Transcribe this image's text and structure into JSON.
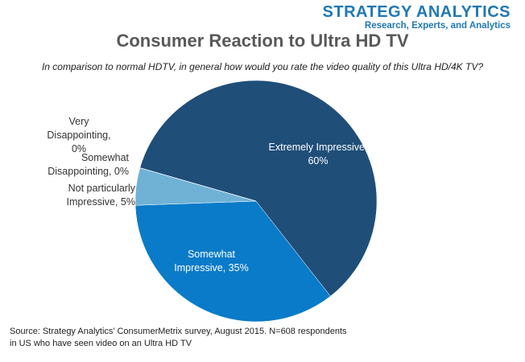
{
  "brand": {
    "name": "STRATEGY ANALYTICS",
    "tagline": "Research, Experts, and Analytics"
  },
  "chart_data": {
    "type": "pie",
    "title": "Consumer Reaction to Ultra HD TV",
    "subtitle": "In comparison to normal HDTV, in general how would you rate the video quality of this Ultra HD/4K TV?",
    "values": [
      60,
      35,
      5,
      0,
      0
    ],
    "value_labels": [
      "Extremely Impressive, 60%",
      "Somewhat Impressive, 35%",
      "Not particularly Impressive, 5%",
      "Somewhat Disappointing, 0%",
      "Very Disappointing, 0%"
    ],
    "colors": [
      "#1f4e79",
      "#0a7bc8",
      "#6fb2d6",
      "#e2603a",
      "#a5a5a5"
    ],
    "source": "Source: Strategy Analytics’ ConsumerMetrix survey, August 2015. N=608 respondents in US who have seen video on an Ultra HD TV"
  }
}
